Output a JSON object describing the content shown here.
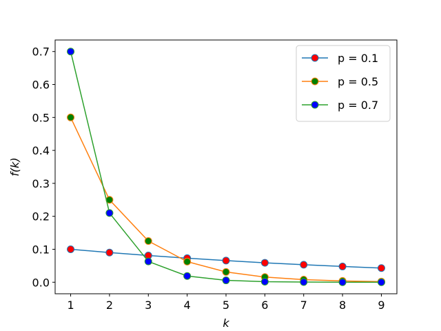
{
  "chart_data": {
    "type": "line",
    "title": "",
    "xlabel": "k",
    "ylabel": "f(k)",
    "x": [
      1,
      2,
      3,
      4,
      5,
      6,
      7,
      8,
      9
    ],
    "xlim": [
      0.6,
      9.4
    ],
    "ylim": [
      -0.035,
      0.735
    ],
    "xticks": [
      1,
      2,
      3,
      4,
      5,
      6,
      7,
      8,
      9
    ],
    "yticks": [
      0.0,
      0.1,
      0.2,
      0.3,
      0.4,
      0.5,
      0.6,
      0.7
    ],
    "ytick_labels": [
      "0.0",
      "0.1",
      "0.2",
      "0.3",
      "0.4",
      "0.5",
      "0.6",
      "0.7"
    ],
    "grid": false,
    "legend_position": "top-right",
    "series": [
      {
        "name": "p = 0.1",
        "line_color": "#1f77b4",
        "marker_color": "#ff0000",
        "values": [
          0.1,
          0.09,
          0.081,
          0.0729,
          0.0656,
          0.059,
          0.0531,
          0.0478,
          0.043
        ]
      },
      {
        "name": "p = 0.5",
        "line_color": "#ff7f0e",
        "marker_color": "#008000",
        "values": [
          0.5,
          0.25,
          0.125,
          0.0625,
          0.03125,
          0.015625,
          0.0078,
          0.0039,
          0.002
        ]
      },
      {
        "name": "p = 0.7",
        "line_color": "#2ca02c",
        "marker_color": "#0000ff",
        "values": [
          0.7,
          0.21,
          0.063,
          0.0189,
          0.0057,
          0.0017,
          0.0005,
          0.00015,
          5e-05
        ]
      }
    ]
  }
}
